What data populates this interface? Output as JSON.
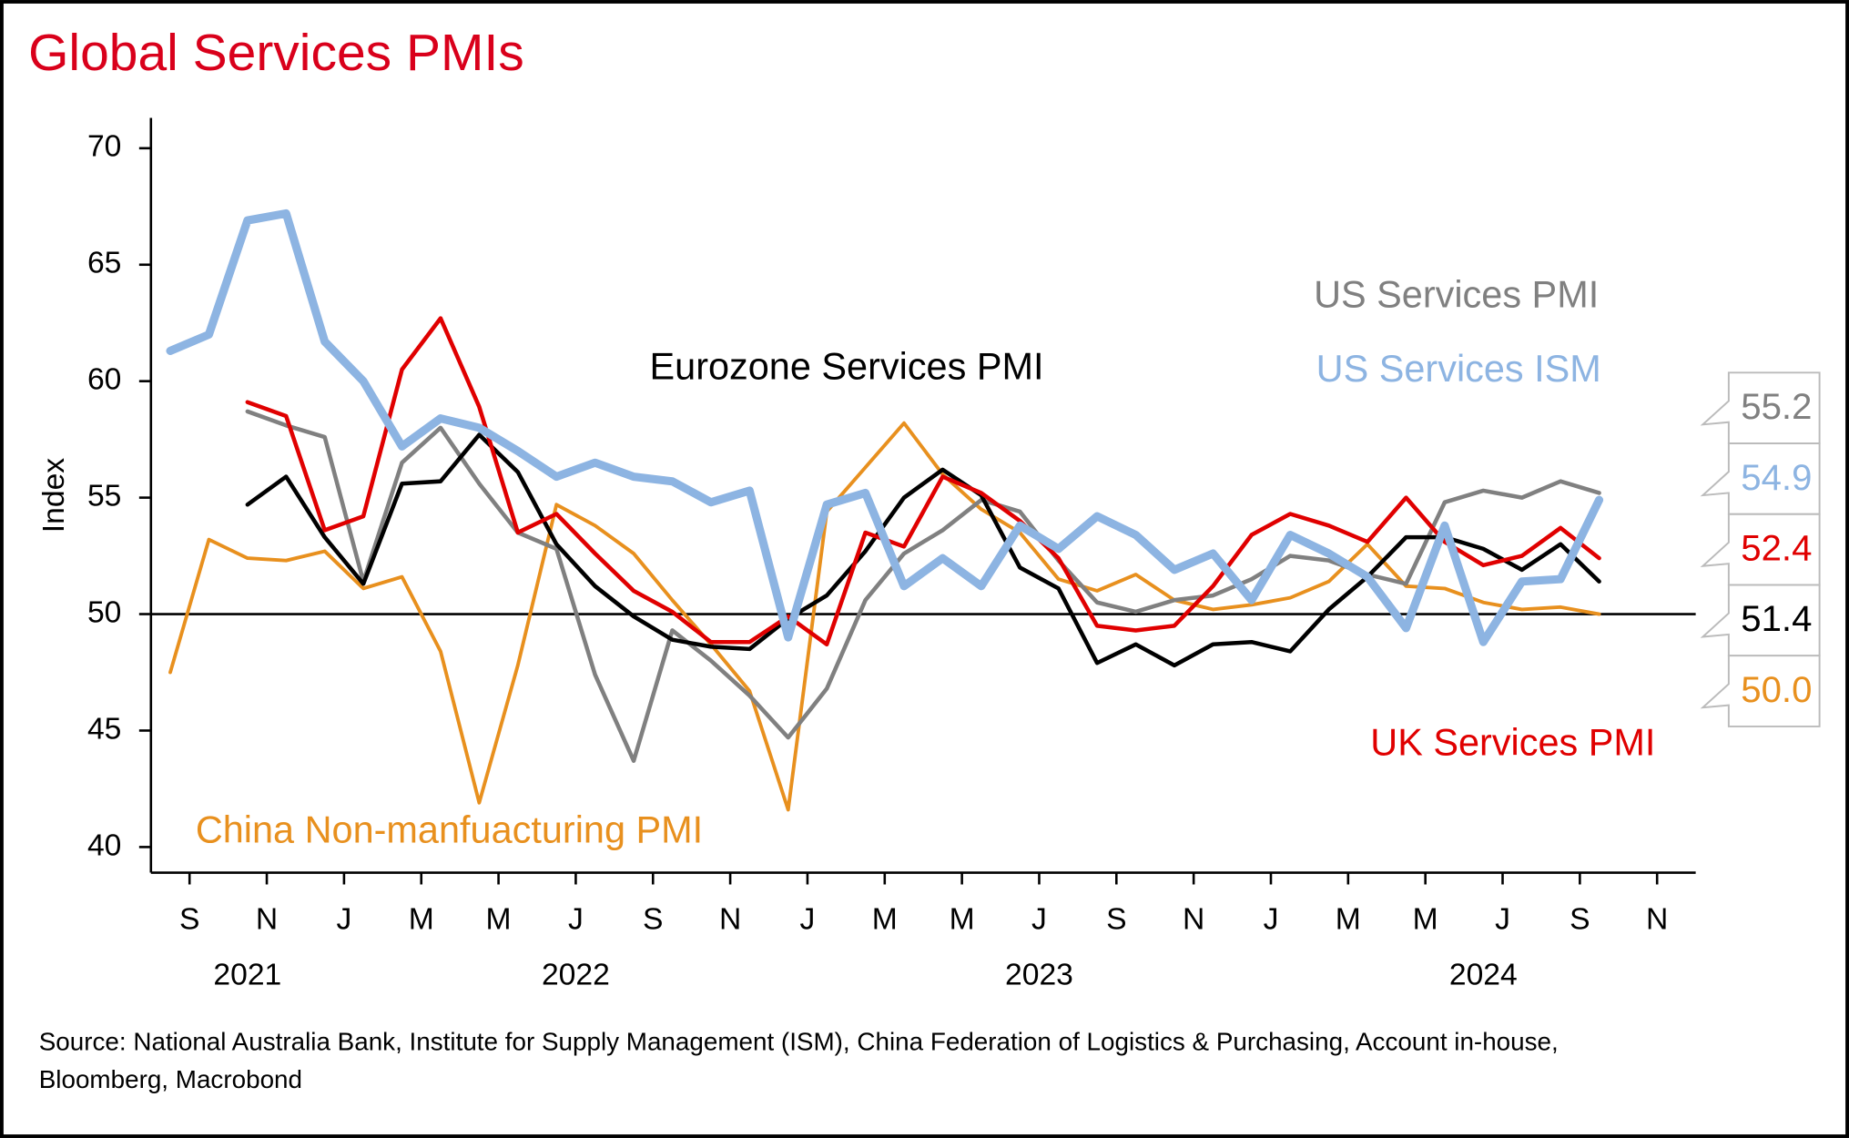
{
  "chart_data": {
    "type": "line",
    "title": "Global Services PMIs",
    "y_label": "Index",
    "source": [
      "Source: National Australia Bank, Institute for Supply Management (ISM), China Federation of Logistics & Purchasing, Account in-house,",
      "Bloomberg, Macrobond"
    ],
    "categories": [
      null,
      "S",
      null,
      "N",
      null,
      "J",
      null,
      "M",
      null,
      "M",
      null,
      "J",
      null,
      "S",
      null,
      "N",
      null,
      "J",
      null,
      "M",
      null,
      "M",
      null,
      "J",
      null,
      "S",
      null,
      "N",
      null,
      "J",
      null,
      "M",
      null,
      "M",
      null,
      "J",
      null,
      "S",
      null,
      "N"
    ],
    "year_labels": [
      "2021",
      "2022",
      "2023",
      "2024"
    ],
    "ylim": [
      38.9,
      71.3
    ],
    "yticks": [
      40,
      45,
      50,
      55,
      60,
      65,
      70
    ],
    "reference_line": 50,
    "series": [
      {
        "name": "US Services PMI",
        "color": "#808080",
        "values": [
          null,
          null,
          58.7,
          58.1,
          57.6,
          51.4,
          56.5,
          58.0,
          55.6,
          53.5,
          52.8,
          47.4,
          43.7,
          49.3,
          48.0,
          46.5,
          44.7,
          46.8,
          50.6,
          52.6,
          53.6,
          54.9,
          54.4,
          52.3,
          50.5,
          50.1,
          50.6,
          50.8,
          51.5,
          52.5,
          52.3,
          51.7,
          51.3,
          54.8,
          55.3,
          55.0,
          55.7,
          55.2,
          null,
          null
        ]
      },
      {
        "name": "US Services ISM",
        "color": "#8db4e2",
        "values": [
          61.3,
          62.0,
          66.9,
          67.2,
          61.7,
          60.0,
          57.2,
          58.4,
          58.0,
          57.0,
          55.9,
          56.5,
          55.9,
          55.7,
          54.8,
          55.3,
          49.0,
          54.7,
          55.2,
          51.2,
          52.4,
          51.2,
          53.8,
          52.8,
          54.2,
          53.4,
          51.9,
          52.6,
          50.6,
          53.4,
          52.6,
          51.6,
          49.4,
          53.8,
          48.8,
          51.4,
          51.5,
          54.9,
          null,
          null
        ]
      },
      {
        "name": "UK Services PMI",
        "color": "#e00000",
        "values": [
          null,
          null,
          59.1,
          58.5,
          53.6,
          54.2,
          60.5,
          62.7,
          58.9,
          53.5,
          54.3,
          52.6,
          51.0,
          50.1,
          48.8,
          48.8,
          49.9,
          48.7,
          53.5,
          52.9,
          55.9,
          55.2,
          54.0,
          52.4,
          49.5,
          49.3,
          49.5,
          51.2,
          53.4,
          54.3,
          53.8,
          53.1,
          55.0,
          53.1,
          52.1,
          52.5,
          53.7,
          52.4,
          null,
          null
        ]
      },
      {
        "name": "Eurozone Services PMI",
        "color": "#000000",
        "values": [
          null,
          null,
          54.7,
          55.9,
          53.3,
          51.3,
          55.6,
          55.7,
          57.7,
          56.1,
          53.0,
          51.2,
          49.9,
          48.9,
          48.6,
          48.5,
          49.8,
          50.8,
          52.7,
          55.0,
          56.2,
          55.1,
          52.0,
          51.1,
          47.9,
          48.7,
          47.8,
          48.7,
          48.8,
          48.4,
          50.2,
          51.6,
          53.3,
          53.3,
          52.8,
          51.9,
          53.0,
          51.4,
          null,
          null
        ]
      },
      {
        "name": "China Non-manfuacturing PMI",
        "color": "#e8901e",
        "values": [
          47.5,
          53.2,
          52.4,
          52.3,
          52.7,
          51.1,
          51.6,
          48.4,
          41.9,
          47.8,
          54.7,
          53.8,
          52.6,
          50.6,
          48.7,
          46.7,
          41.6,
          54.4,
          56.3,
          58.2,
          56.0,
          54.5,
          53.5,
          51.5,
          51.0,
          51.7,
          50.6,
          50.2,
          50.4,
          50.7,
          51.4,
          53.0,
          51.2,
          51.1,
          50.5,
          50.2,
          50.3,
          50.0,
          null,
          null
        ],
        "value_labels": [
          null,
          null,
          null,
          null,
          null,
          null,
          null,
          null,
          null,
          null,
          null,
          null,
          null,
          null,
          null,
          null,
          null,
          null,
          null,
          null,
          null,
          null,
          null,
          null,
          null,
          null,
          null,
          null,
          null,
          null,
          null,
          null,
          null,
          null,
          null,
          null,
          null,
          "50.0",
          null,
          null
        ]
      }
    ]
  }
}
